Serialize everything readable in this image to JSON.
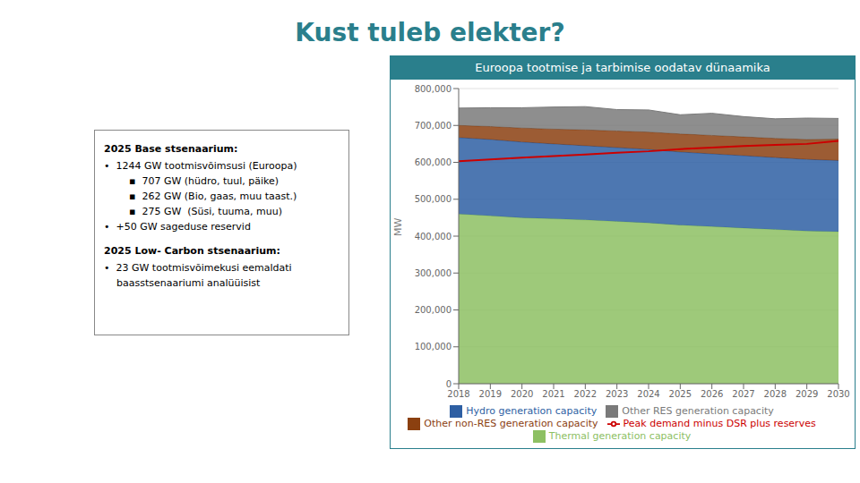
{
  "chart_data": {
    "type": "area",
    "title": "Kust tuleb elekter?",
    "subtitle": "Euroopa tootmise ja tarbimise oodatav dünaamika",
    "x": [
      2018,
      2019,
      2020,
      2021,
      2022,
      2023,
      2024,
      2025,
      2026,
      2027,
      2028,
      2029,
      2030
    ],
    "xlim": [
      2018,
      2030
    ],
    "xticks": [
      2018,
      2019,
      2020,
      2021,
      2022,
      2023,
      2024,
      2025,
      2026,
      2027,
      2028,
      2029,
      2030
    ],
    "ylim": [
      0,
      800000
    ],
    "yticks": [
      0,
      {
        "value": 100000,
        "label": "100,000"
      },
      {
        "value": 200000,
        "label": "200,000"
      },
      {
        "value": 300000,
        "label": "300,000"
      },
      {
        "value": 400000,
        "label": "400,000"
      },
      {
        "value": 500000,
        "label": "500,000"
      },
      {
        "value": 600000,
        "label": "600,000"
      },
      {
        "value": 700000,
        "label": "700,000"
      },
      {
        "value": 800000,
        "label": "800,000"
      }
    ],
    "ylabel": "MW",
    "grid": true,
    "legend": "bottom",
    "stacked": true,
    "series": [
      {
        "name": "Thermal generation capacity",
        "color": "#8dc063",
        "type": "area",
        "values": [
          460000,
          455000,
          450000,
          447000,
          444000,
          440000,
          436000,
          430000,
          426000,
          422000,
          418000,
          414000,
          412000
        ]
      },
      {
        "name": "Hydro generation capacity",
        "color": "#2e5fa3",
        "type": "area",
        "values": [
          207000,
          207000,
          205000,
          203000,
          201000,
          200000,
          199000,
          198000,
          197000,
          196000,
          195000,
          194000,
          193000
        ]
      },
      {
        "name": "Other non-RES generation capacity",
        "color": "#8b4010",
        "type": "area",
        "values": [
          33000,
          35000,
          38000,
          40000,
          43000,
          45000,
          47000,
          49000,
          50000,
          51000,
          52000,
          54000,
          58000
        ]
      },
      {
        "name": "Other RES generation capacity",
        "color": "#7a7a7a",
        "type": "area",
        "values": [
          47000,
          51000,
          55000,
          60000,
          63000,
          58000,
          60000,
          52000,
          60000,
          55000,
          53000,
          58000,
          56000
        ]
      },
      {
        "name": "Peak demand minus DSR plus reserves",
        "color": "#cc0000",
        "type": "line",
        "values": [
          603000,
          608000,
          613000,
          617000,
          621000,
          626000,
          630000,
          636000,
          640000,
          644000,
          647000,
          650000,
          658000
        ]
      }
    ],
    "annotations": [
      {
        "title": "2025 Base stsenaarium:",
        "lines": [
          "•  1244 GW tootmisvõimsusi (Euroopa)",
          "        ▪  707 GW (hüdro, tuul, päike)",
          "        ▪  262 GW (Bio, gaas, muu taast.)",
          "        ▪  275 GW  (Süsi, tuuma, muu)",
          "•  +50 GW sageduse reservid"
        ]
      },
      {
        "title": "2025 Low- Carbon stsenaarium:",
        "lines": [
          "•  23 GW tootmisvõimekusi eemaldati",
          "    baasstsenaariumi analüüisist"
        ]
      }
    ]
  }
}
